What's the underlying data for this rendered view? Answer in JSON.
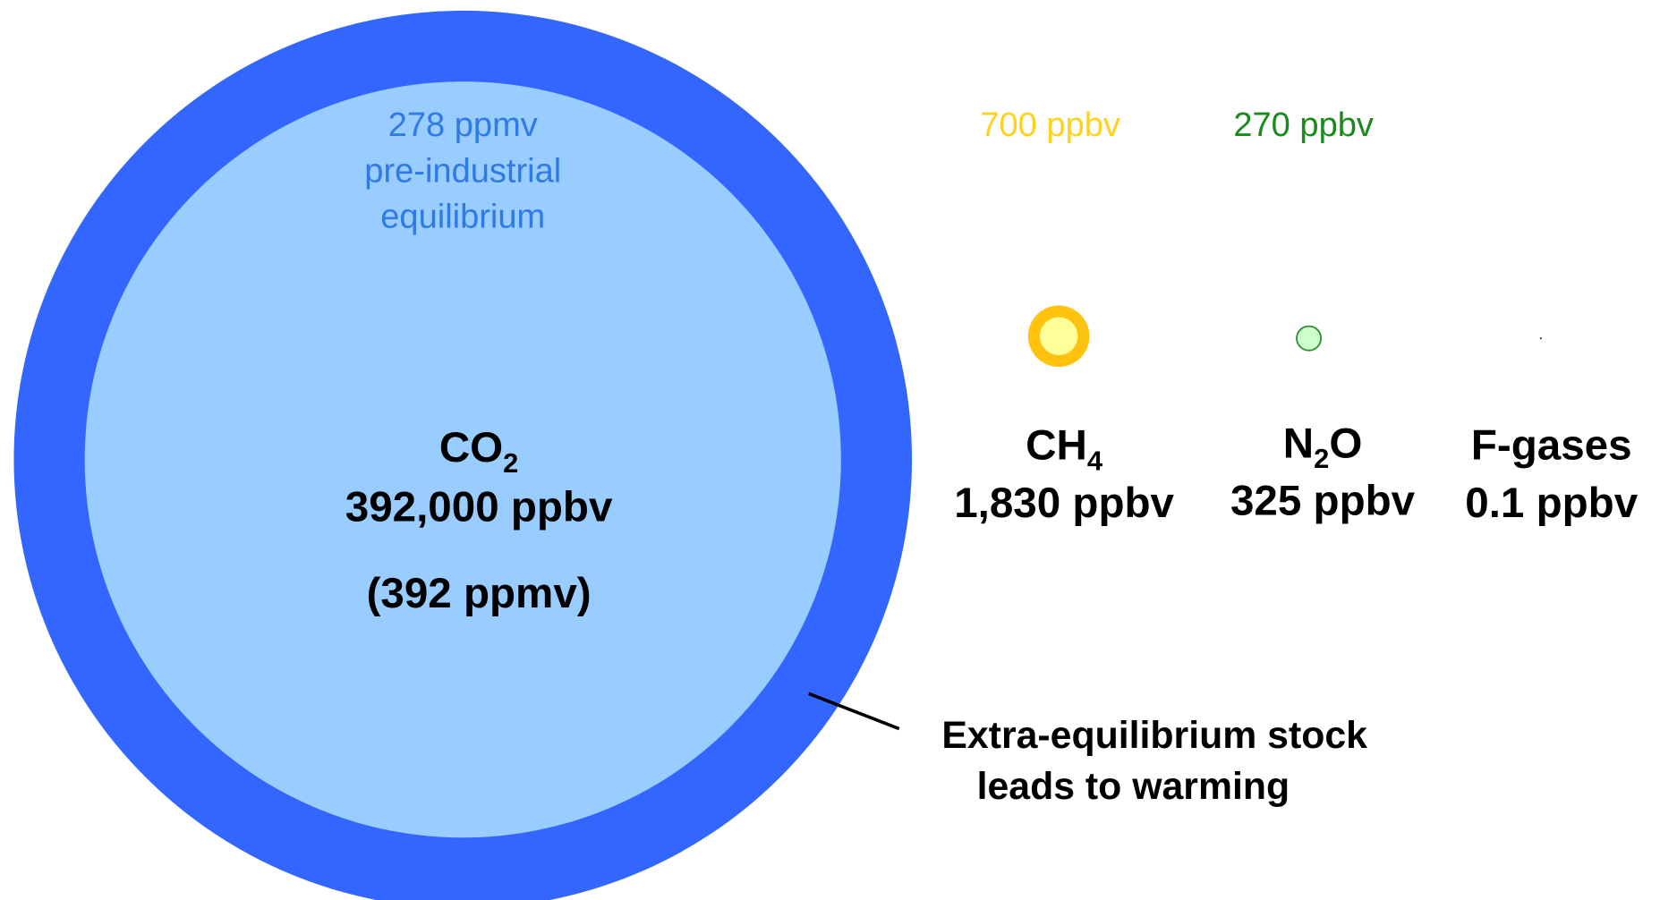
{
  "gases": [
    {
      "formula": {
        "main": "CO",
        "sub": "2"
      },
      "value": 392000,
      "value_label": "392,000 ppbv",
      "note": "(392 ppmv)",
      "pre_industrial": {
        "value": 278000,
        "label": "278 ppmv",
        "note": [
          "pre-industrial",
          "equilibrium"
        ]
      },
      "color": "#3366ff",
      "inner_color": "#99ccff",
      "label_color": "#2f7ae5"
    },
    {
      "formula": {
        "main": "CH",
        "sub": "4"
      },
      "value": 1830,
      "value_label": "1,830 ppbv",
      "pre_industrial": {
        "value": 700,
        "label": "700 ppbv"
      },
      "color": "#ffc20e",
      "inner_color": "#ffff99",
      "label_color": "#ffd21f"
    },
    {
      "formula": {
        "main": "N",
        "sub": "2",
        "tail": "O"
      },
      "value": 325,
      "value_label": "325 ppbv",
      "pre_industrial": {
        "value": 270,
        "label": "270 ppbv"
      },
      "color": "#2e8b2e",
      "inner_color": "#ccffcc",
      "label_color": "#1a8a1a"
    },
    {
      "formula": {
        "main": "F-gases"
      },
      "value": 0.1,
      "value_label": "0.1 ppbv",
      "color": "#000000"
    }
  ],
  "annotation": [
    "Extra-equilibrium stock",
    "leads to warming"
  ]
}
